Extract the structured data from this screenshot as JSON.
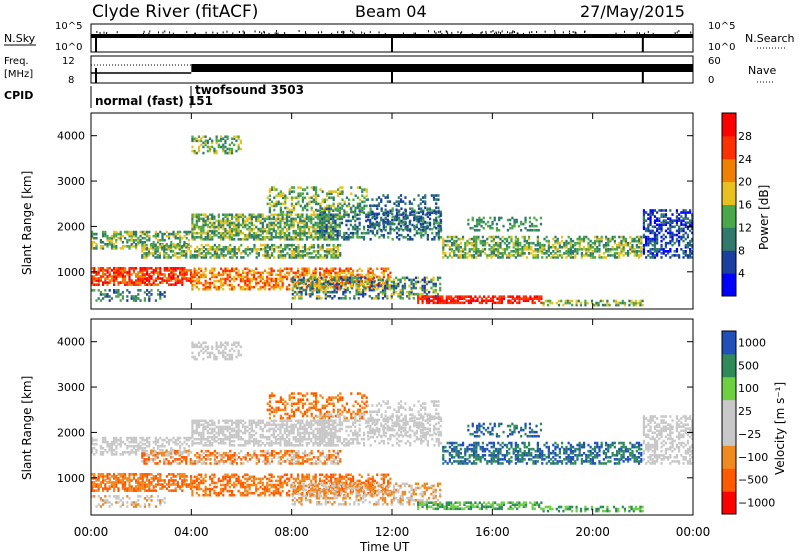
{
  "header": {
    "title": "Clyde River (fitACF)",
    "beam": "Beam 04",
    "date": "27/May/2015"
  },
  "top_panel": {
    "nsky_label": "N.Sky",
    "nsearch_label": "N.Search",
    "left_ticks": [
      "10^5",
      "10^0"
    ],
    "right_ticks": [
      "10^5",
      "10^0"
    ]
  },
  "freq_panel": {
    "freq_label": "Freq.",
    "freq_unit": "[MHz]",
    "nave_label": "Nave",
    "left_ticks": [
      "12",
      "8"
    ],
    "right_ticks": [
      "60",
      "0"
    ]
  },
  "cpid": {
    "label": "CPID",
    "modes": [
      {
        "name": "normal (fast) 151",
        "start_hour": 0
      },
      {
        "name": "twofsound 3503",
        "start_hour": 4
      }
    ]
  },
  "colors": {
    "power_scale": [
      "#0000ff",
      "#1a3f9e",
      "#2f7a6a",
      "#4aa84a",
      "#e8c020",
      "#f08000",
      "#ff3000",
      "#ff0000"
    ],
    "velocity_scale": [
      "#ff0000",
      "#ff5a00",
      "#f08a20",
      "#c8c8c8",
      "#c8c8c8",
      "#6cd040",
      "#2f8a5a",
      "#2050b8"
    ]
  },
  "chart_data": [
    {
      "type": "heatmap",
      "name": "power",
      "ylabel": "Slant Range [km]",
      "xlabel": "Time UT",
      "x_ticks": [
        "00:00",
        "04:00",
        "08:00",
        "12:00",
        "16:00",
        "20:00",
        "00:00"
      ],
      "y_ticks": [
        "1000",
        "2000",
        "3000",
        "4000"
      ],
      "xlim_hours": [
        0,
        24
      ],
      "ylim_km": [
        180,
        4500
      ],
      "colorbar": {
        "label": "Power [dB]",
        "ticks": [
          "28",
          "24",
          "20",
          "16",
          "12",
          "8",
          "4"
        ],
        "range": [
          0,
          32
        ]
      }
    },
    {
      "type": "heatmap",
      "name": "velocity",
      "ylabel": "Slant Range [km]",
      "xlabel": "Time UT",
      "x_ticks": [
        "00:00",
        "04:00",
        "08:00",
        "12:00",
        "16:00",
        "20:00",
        "00:00"
      ],
      "y_ticks": [
        "1000",
        "2000",
        "3000",
        "4000"
      ],
      "xlim_hours": [
        0,
        24
      ],
      "ylim_km": [
        180,
        4500
      ],
      "colorbar": {
        "label": "Velocity [m s⁻¹]",
        "ticks": [
          "1000",
          "500",
          "100",
          "25",
          "−25",
          "−100",
          "−500",
          "−1000"
        ]
      }
    }
  ],
  "x_axis_title": "Time UT"
}
